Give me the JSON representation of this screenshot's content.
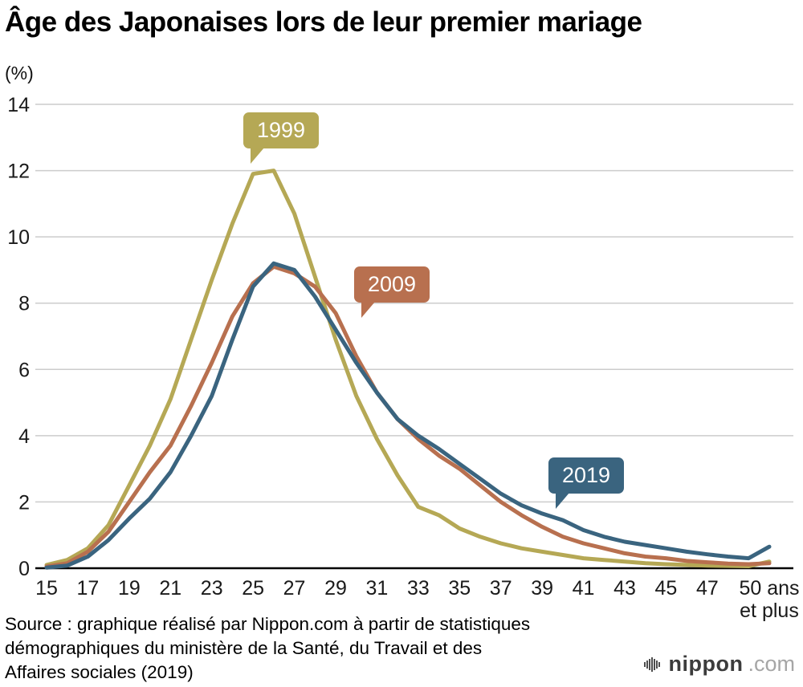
{
  "title": "Âge des Japonaises lors de leur premier mariage",
  "percent_label": "(%)",
  "source": {
    "lines": [
      "Source : graphique réalisé par Nippon.com à partir de statistiques",
      "démographiques du ministère de la Santé, du Travail et des",
      "Affaires sociales (2019)"
    ]
  },
  "logo": {
    "name": "nippon",
    "tld": ".com"
  },
  "chart_data": {
    "type": "line",
    "title": "Âge des Japonaises lors de leur premier mariage",
    "xlabel": "",
    "ylabel": "(%)",
    "ylim": [
      0,
      14
    ],
    "yticks": [
      0,
      2,
      4,
      6,
      8,
      10,
      12,
      14
    ],
    "grid": "horizontal",
    "x": [
      15,
      16,
      17,
      18,
      19,
      20,
      21,
      22,
      23,
      24,
      25,
      26,
      27,
      28,
      29,
      30,
      31,
      32,
      33,
      34,
      35,
      36,
      37,
      38,
      39,
      40,
      41,
      42,
      43,
      44,
      45,
      46,
      47,
      48,
      49,
      50
    ],
    "xticks": [
      {
        "age": 15,
        "label": "15"
      },
      {
        "age": 17,
        "label": "17"
      },
      {
        "age": 19,
        "label": "19"
      },
      {
        "age": 21,
        "label": "21"
      },
      {
        "age": 23,
        "label": "23"
      },
      {
        "age": 25,
        "label": "25"
      },
      {
        "age": 27,
        "label": "27"
      },
      {
        "age": 29,
        "label": "29"
      },
      {
        "age": 31,
        "label": "31"
      },
      {
        "age": 33,
        "label": "33"
      },
      {
        "age": 35,
        "label": "35"
      },
      {
        "age": 37,
        "label": "37"
      },
      {
        "age": 39,
        "label": "39"
      },
      {
        "age": 41,
        "label": "41"
      },
      {
        "age": 43,
        "label": "43"
      },
      {
        "age": 45,
        "label": "45"
      },
      {
        "age": 47,
        "label": "47"
      },
      {
        "age": 50,
        "label": "50 ans\net plus"
      }
    ],
    "series": [
      {
        "name": "1999",
        "color": "#b5a855",
        "values": [
          0.1,
          0.25,
          0.6,
          1.3,
          2.5,
          3.7,
          5.1,
          6.9,
          8.7,
          10.4,
          11.9,
          12.0,
          10.7,
          8.8,
          6.9,
          5.2,
          3.9,
          2.8,
          1.85,
          1.6,
          1.2,
          0.95,
          0.75,
          0.6,
          0.5,
          0.4,
          0.3,
          0.25,
          0.2,
          0.15,
          0.12,
          0.1,
          0.08,
          0.07,
          0.06,
          0.2
        ]
      },
      {
        "name": "2009",
        "color": "#b8704f",
        "values": [
          0.05,
          0.15,
          0.5,
          1.1,
          2.0,
          2.9,
          3.7,
          4.9,
          6.2,
          7.6,
          8.6,
          9.1,
          8.9,
          8.5,
          7.7,
          6.4,
          5.3,
          4.5,
          3.9,
          3.4,
          3.0,
          2.5,
          2.0,
          1.6,
          1.25,
          0.95,
          0.75,
          0.6,
          0.45,
          0.35,
          0.3,
          0.22,
          0.18,
          0.14,
          0.12,
          0.15
        ]
      },
      {
        "name": "2019",
        "color": "#3a647f",
        "values": [
          0.02,
          0.08,
          0.35,
          0.85,
          1.5,
          2.1,
          2.9,
          4.0,
          5.2,
          6.9,
          8.5,
          9.2,
          9.0,
          8.2,
          7.2,
          6.2,
          5.3,
          4.5,
          4.0,
          3.6,
          3.15,
          2.7,
          2.25,
          1.9,
          1.65,
          1.45,
          1.15,
          0.95,
          0.8,
          0.7,
          0.6,
          0.5,
          0.42,
          0.35,
          0.3,
          0.65
        ]
      }
    ]
  }
}
